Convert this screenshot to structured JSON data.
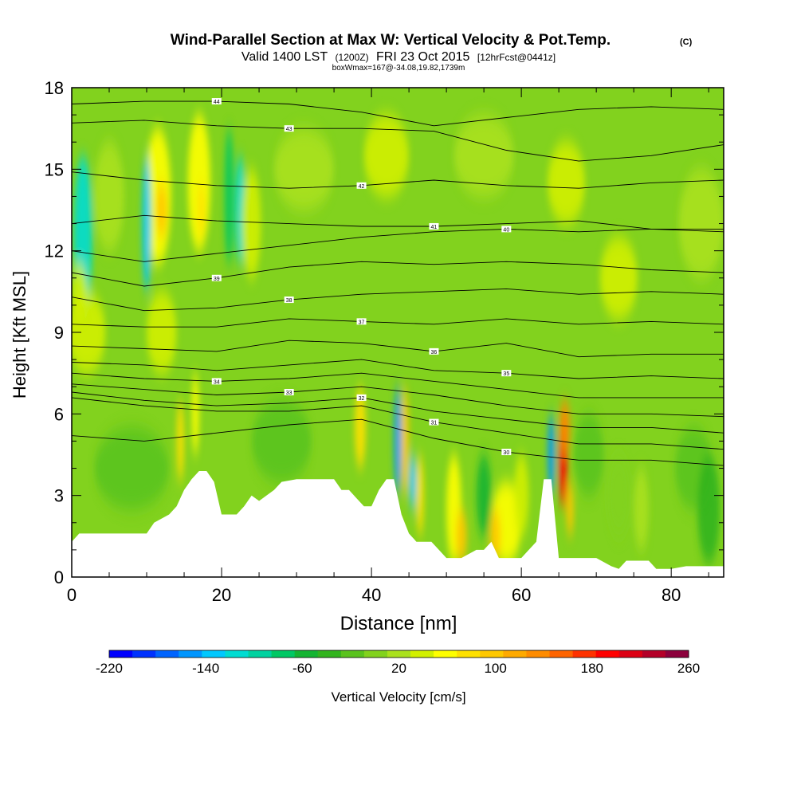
{
  "chart_data": {
    "type": "heatmap",
    "title": "Wind-Parallel Section at Max W: Vertical Velocity & Pot.Temp.",
    "copyright": "(C)",
    "subtitle_main": "Valid 1400 LST",
    "subtitle_utc": "(1200Z)",
    "subtitle_date": "FRI 23 Oct 2015",
    "subtitle_fcst": "[12hrFcst@0441z]",
    "subtitle_box": "boxWmax=167@-34.08,19.82,1739m",
    "xlabel": "Distance [nm]",
    "ylabel": "Height [Kft MSL]",
    "xlim": [
      0,
      87
    ],
    "ylim": [
      0,
      18
    ],
    "xticks": [
      0,
      20,
      40,
      60,
      80
    ],
    "yticks": [
      0,
      3,
      6,
      9,
      12,
      15,
      18
    ],
    "colorbar": {
      "label": "Vertical Velocity [cm/s]",
      "ticks": [
        -220,
        -140,
        -60,
        20,
        100,
        180,
        260
      ],
      "colors": [
        "#0000ff",
        "#0032ff",
        "#0064ff",
        "#0096ff",
        "#00c8ff",
        "#00dcd2",
        "#00d2a0",
        "#00c864",
        "#14b432",
        "#32b41e",
        "#5ac31e",
        "#82d21e",
        "#aae11e",
        "#d2f000",
        "#ffff00",
        "#ffe100",
        "#ffc800",
        "#ffaa00",
        "#ff8c00",
        "#ff6400",
        "#ff3200",
        "#ff0000",
        "#dc0014",
        "#b40028",
        "#8c003c"
      ]
    },
    "terrain": [
      [
        0,
        1.3
      ],
      [
        1,
        1.6
      ],
      [
        4,
        1.6
      ],
      [
        8,
        1.6
      ],
      [
        10,
        1.6
      ],
      [
        11,
        2
      ],
      [
        13,
        2.3
      ],
      [
        14,
        2.6
      ],
      [
        15,
        3.2
      ],
      [
        16,
        3.6
      ],
      [
        17,
        3.9
      ],
      [
        18,
        3.9
      ],
      [
        19,
        3.5
      ],
      [
        20,
        2.3
      ],
      [
        22,
        2.3
      ],
      [
        23,
        2.6
      ],
      [
        24,
        3
      ],
      [
        25,
        2.8
      ],
      [
        27,
        3.2
      ],
      [
        28,
        3.5
      ],
      [
        30,
        3.6
      ],
      [
        35,
        3.6
      ],
      [
        36,
        3.2
      ],
      [
        37,
        3.2
      ],
      [
        38,
        2.9
      ],
      [
        39,
        2.6
      ],
      [
        40,
        2.6
      ],
      [
        41,
        3.2
      ],
      [
        42,
        3.6
      ],
      [
        43,
        3.6
      ],
      [
        44,
        2.3
      ],
      [
        45,
        1.6
      ],
      [
        46,
        1.3
      ],
      [
        48,
        1.3
      ],
      [
        49,
        1
      ],
      [
        50,
        0.7
      ],
      [
        52,
        0.7
      ],
      [
        54,
        1
      ],
      [
        55,
        1
      ],
      [
        56,
        1.3
      ],
      [
        57,
        0.7
      ],
      [
        60,
        0.7
      ],
      [
        61,
        1
      ],
      [
        62,
        1.3
      ],
      [
        63,
        3.6
      ],
      [
        64,
        3.6
      ],
      [
        65,
        0.7
      ],
      [
        70,
        0.7
      ],
      [
        72,
        0.4
      ],
      [
        73,
        0.3
      ],
      [
        74,
        0.6
      ],
      [
        77,
        0.6
      ],
      [
        78,
        0.3
      ],
      [
        80,
        0.3
      ],
      [
        82,
        0.4
      ],
      [
        87,
        0.4
      ]
    ],
    "theta_contours": [
      {
        "label": "44",
        "heights": [
          17.4,
          17.5,
          17.5,
          17.4,
          17.1,
          16.6,
          16.9,
          17.2,
          17.3,
          17.2
        ]
      },
      {
        "label": "43",
        "heights": [
          16.7,
          16.8,
          16.6,
          16.5,
          16.5,
          16.4,
          15.7,
          15.3,
          15.5,
          15.9
        ]
      },
      {
        "label": "42",
        "heights": [
          14.9,
          14.6,
          14.4,
          14.3,
          14.4,
          14.6,
          14.4,
          14.3,
          14.5,
          14.6
        ]
      },
      {
        "label": "41",
        "heights": [
          13.0,
          13.3,
          13.1,
          13.0,
          12.9,
          12.9,
          13.0,
          13.1,
          12.8,
          12.7
        ]
      },
      {
        "label": "40",
        "heights": [
          12.0,
          11.6,
          11.9,
          12.2,
          12.5,
          12.7,
          12.8,
          12.7,
          12.8,
          12.8
        ]
      },
      {
        "label": "39",
        "heights": [
          11.2,
          10.7,
          11.0,
          11.4,
          11.6,
          11.5,
          11.6,
          11.5,
          11.3,
          11.2
        ]
      },
      {
        "label": "38",
        "heights": [
          10.3,
          9.8,
          9.9,
          10.2,
          10.4,
          10.5,
          10.6,
          10.4,
          10.5,
          10.4
        ]
      },
      {
        "label": "37",
        "heights": [
          9.3,
          9.2,
          9.2,
          9.5,
          9.4,
          9.3,
          9.5,
          9.3,
          9.4,
          9.3
        ]
      },
      {
        "label": "36",
        "heights": [
          8.5,
          8.4,
          8.3,
          8.7,
          8.6,
          8.3,
          8.6,
          8.1,
          8.2,
          8.2
        ]
      },
      {
        "label": "35",
        "heights": [
          7.9,
          7.8,
          7.6,
          7.8,
          8.0,
          7.6,
          7.5,
          7.3,
          7.4,
          7.3
        ]
      },
      {
        "label": "34",
        "heights": [
          7.5,
          7.3,
          7.2,
          7.3,
          7.5,
          7.2,
          6.9,
          6.6,
          6.6,
          6.6
        ]
      },
      {
        "label": "33",
        "heights": [
          7.1,
          6.9,
          6.7,
          6.8,
          7.0,
          6.7,
          6.3,
          6.0,
          6.0,
          5.9
        ]
      },
      {
        "label": "32",
        "heights": [
          6.8,
          6.5,
          6.3,
          6.4,
          6.6,
          6.1,
          5.8,
          5.5,
          5.5,
          5.3
        ]
      },
      {
        "label": "31",
        "heights": [
          6.6,
          6.3,
          6.1,
          6.1,
          6.3,
          5.7,
          5.3,
          4.9,
          4.9,
          4.7
        ]
      },
      {
        "label": "30",
        "heights": [
          5.2,
          5.0,
          5.3,
          5.6,
          5.8,
          5.1,
          4.6,
          4.3,
          4.3,
          4.1
        ]
      }
    ]
  }
}
